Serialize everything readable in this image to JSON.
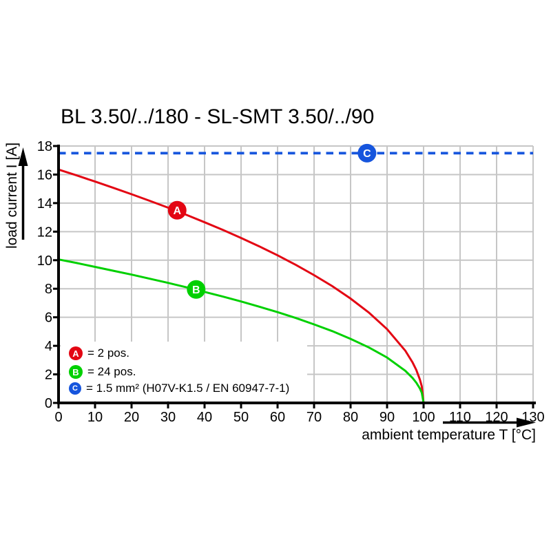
{
  "title": "BL 3.50/../180 - SL-SMT 3.50/../90",
  "colors": {
    "series_a": "#e30613",
    "series_b": "#00d000",
    "series_c": "#1655dd",
    "grid": "#c6c6c6",
    "axis": "#000000",
    "background": "#ffffff"
  },
  "chart_data": {
    "type": "line",
    "title": "BL 3.50/../180 - SL-SMT 3.50/../90",
    "xlabel": "ambient temperature T [°C]",
    "ylabel": "load current I [A]",
    "xlim": [
      0,
      130
    ],
    "ylim": [
      0,
      18
    ],
    "xticks": [
      0,
      10,
      20,
      30,
      40,
      50,
      60,
      70,
      80,
      90,
      100,
      110,
      120,
      130
    ],
    "yticks": [
      0,
      2,
      4,
      6,
      8,
      10,
      12,
      14,
      16,
      18
    ],
    "grid": true,
    "legend_position": "bottom-left-inside",
    "series": [
      {
        "id": "A",
        "name": "2 pos.",
        "color": "#e30613",
        "style": "solid",
        "points": [
          [
            0,
            16.35
          ],
          [
            5,
            15.94
          ],
          [
            10,
            15.51
          ],
          [
            15,
            15.07
          ],
          [
            20,
            14.62
          ],
          [
            25,
            14.16
          ],
          [
            30,
            13.68
          ],
          [
            35,
            13.18
          ],
          [
            40,
            12.66
          ],
          [
            45,
            12.12
          ],
          [
            50,
            11.56
          ],
          [
            55,
            10.97
          ],
          [
            60,
            10.34
          ],
          [
            65,
            9.67
          ],
          [
            70,
            8.95
          ],
          [
            75,
            8.18
          ],
          [
            80,
            7.31
          ],
          [
            85,
            6.33
          ],
          [
            90,
            5.17
          ],
          [
            95,
            3.66
          ],
          [
            97,
            2.83
          ],
          [
            98,
            2.31
          ],
          [
            99,
            1.63
          ],
          [
            99.5,
            1.16
          ],
          [
            100,
            0
          ]
        ]
      },
      {
        "id": "B",
        "name": "24 pos.",
        "color": "#00d000",
        "style": "solid",
        "points": [
          [
            0,
            10.05
          ],
          [
            5,
            9.8
          ],
          [
            10,
            9.53
          ],
          [
            15,
            9.26
          ],
          [
            20,
            8.99
          ],
          [
            25,
            8.7
          ],
          [
            30,
            8.41
          ],
          [
            35,
            8.1
          ],
          [
            40,
            7.78
          ],
          [
            45,
            7.45
          ],
          [
            50,
            7.11
          ],
          [
            55,
            6.74
          ],
          [
            60,
            6.36
          ],
          [
            65,
            5.95
          ],
          [
            70,
            5.5
          ],
          [
            75,
            5.03
          ],
          [
            80,
            4.49
          ],
          [
            85,
            3.89
          ],
          [
            90,
            3.18
          ],
          [
            95,
            2.25
          ],
          [
            97,
            1.74
          ],
          [
            98,
            1.42
          ],
          [
            99,
            1.01
          ],
          [
            99.5,
            0.71
          ],
          [
            100,
            0
          ]
        ]
      },
      {
        "id": "C",
        "name": "1.5 mm² (H07V-K1.5 / EN 60947-7-1)",
        "color": "#1655dd",
        "style": "dashed",
        "points": [
          [
            0,
            17.5
          ],
          [
            130,
            17.5
          ]
        ]
      }
    ],
    "curve_markers": [
      {
        "series": "A",
        "letter": "A",
        "x": 32.5,
        "y": 13.5
      },
      {
        "series": "B",
        "letter": "B",
        "x": 37.7,
        "y": 7.95
      },
      {
        "series": "C",
        "letter": "C",
        "x": 84.5,
        "y": 17.5
      }
    ],
    "legend": [
      {
        "letter": "A",
        "color": "#e30613",
        "text": "= 2 pos."
      },
      {
        "letter": "B",
        "color": "#00d000",
        "text": "= 24 pos."
      },
      {
        "letter": "C",
        "color": "#1655dd",
        "text": "= 1.5 mm² (H07V-K1.5 / EN 60947-7-1)"
      }
    ]
  }
}
